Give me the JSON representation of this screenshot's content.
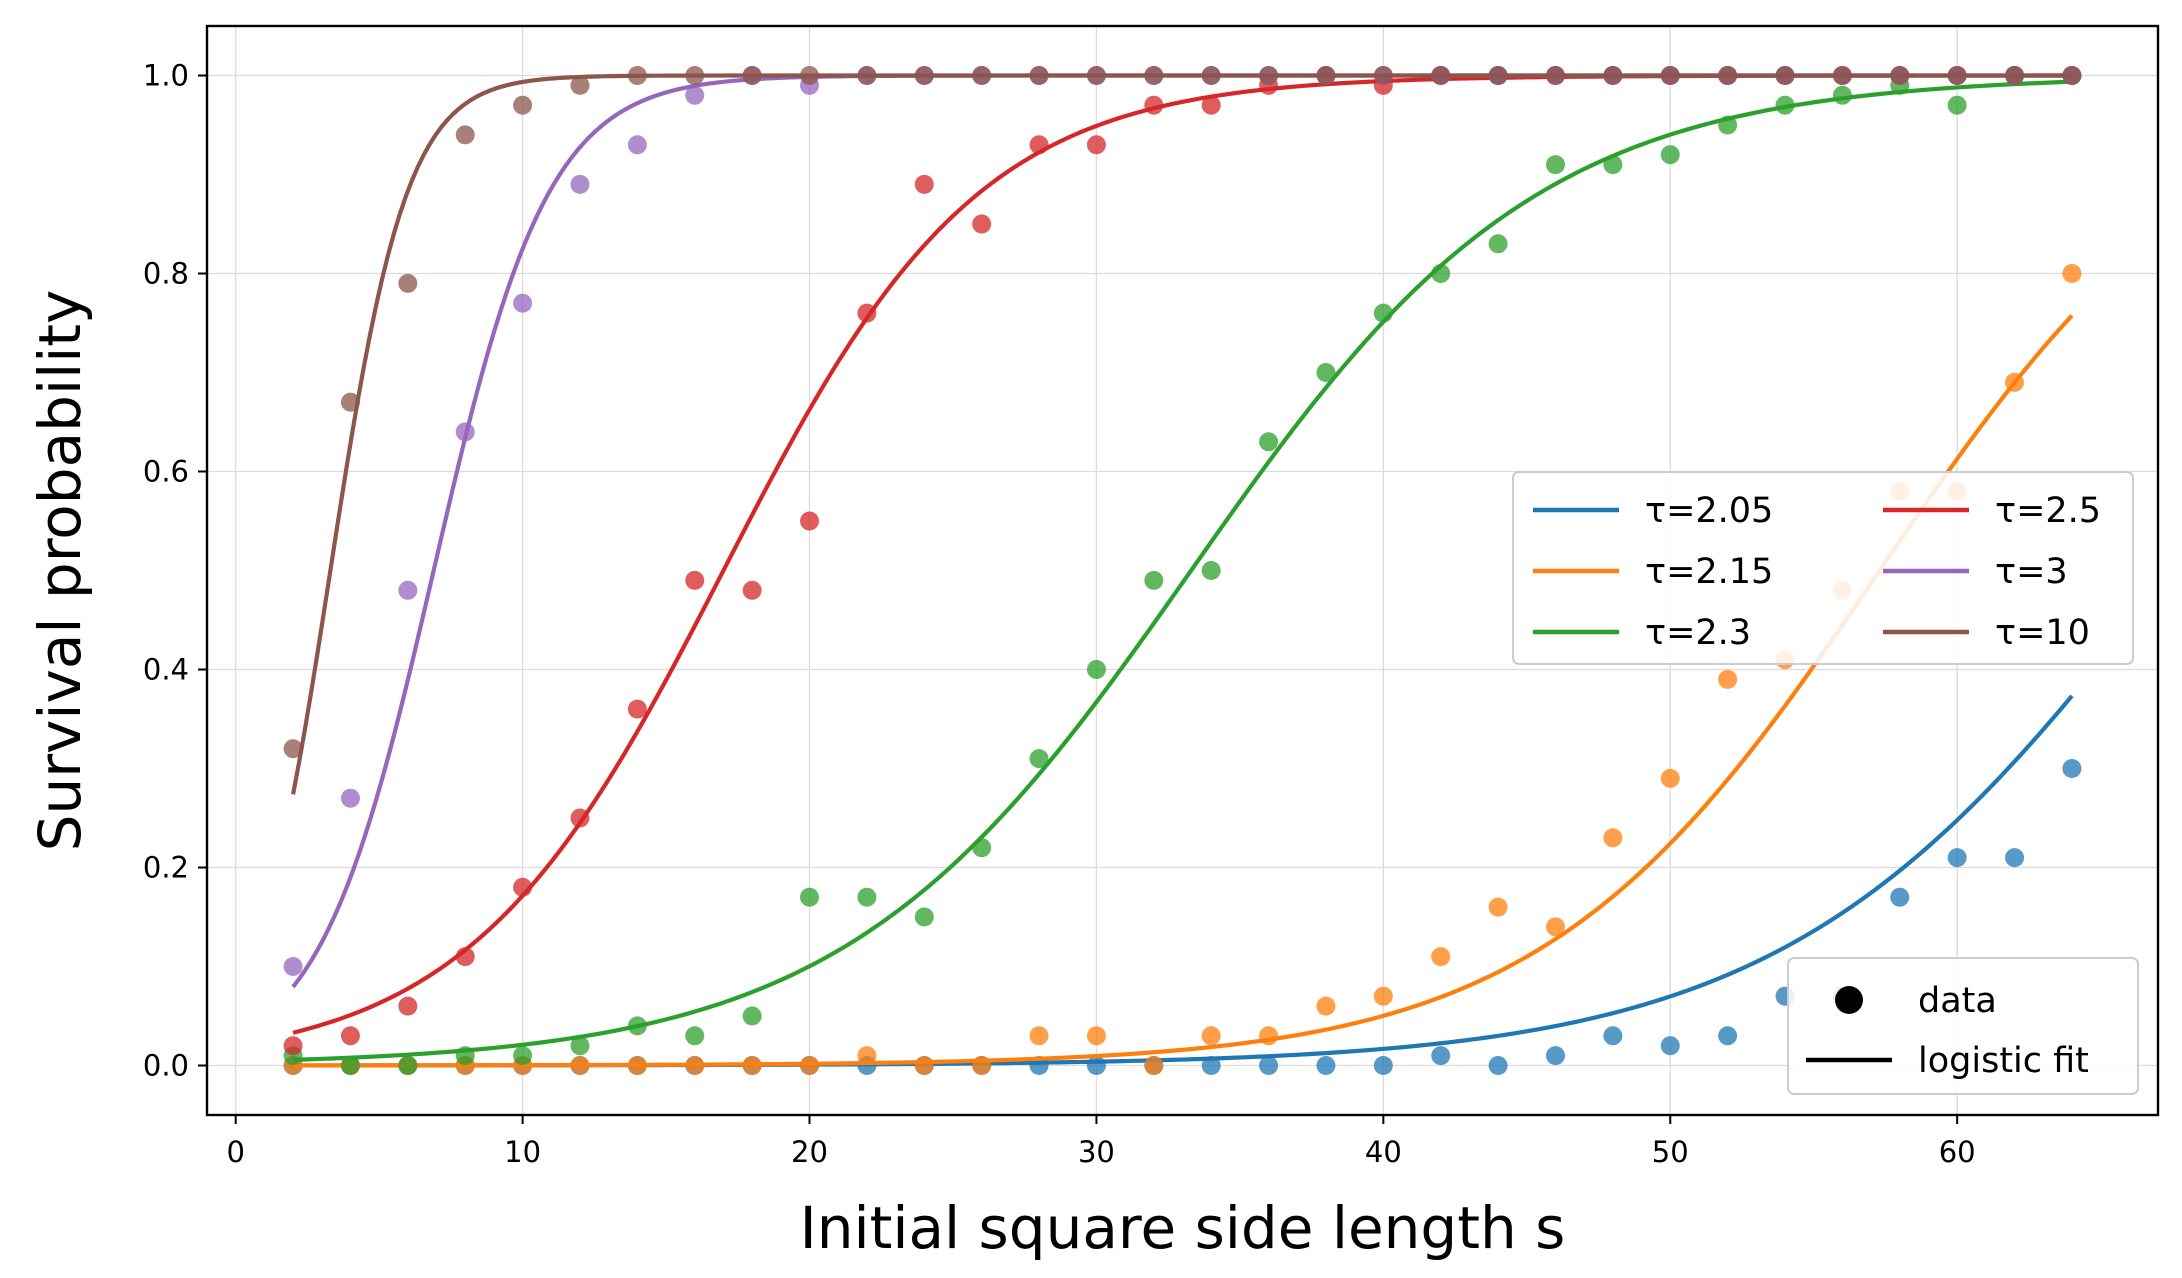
{
  "chart_data": {
    "type": "scatter",
    "xlabel": "Initial square side length s",
    "ylabel": "Survival probability",
    "xlim": [
      -1,
      67
    ],
    "ylim": [
      -0.05,
      1.05
    ],
    "xticks": [
      0,
      10,
      20,
      30,
      40,
      50,
      60
    ],
    "yticks": [
      0.0,
      0.2,
      0.4,
      0.6,
      0.8,
      1.0
    ],
    "xtick_labels": [
      "0",
      "10",
      "20",
      "30",
      "40",
      "50",
      "60"
    ],
    "ytick_labels": [
      "0.0",
      "0.2",
      "0.4",
      "0.6",
      "0.8",
      "1.0"
    ],
    "grid": true,
    "x": [
      2,
      4,
      6,
      8,
      10,
      12,
      14,
      16,
      18,
      20,
      22,
      24,
      26,
      28,
      30,
      32,
      34,
      36,
      38,
      40,
      42,
      44,
      46,
      48,
      50,
      52,
      54,
      56,
      58,
      60,
      62,
      64
    ],
    "series": [
      {
        "name": "τ=2.05",
        "color": "#1f77b4",
        "values": [
          0.0,
          0.0,
          0.0,
          0.0,
          0.0,
          0.0,
          0.0,
          0.0,
          0.0,
          0.0,
          0.0,
          0.0,
          0.0,
          0.0,
          0.0,
          0.0,
          0.0,
          0.0,
          0.0,
          0.0,
          0.01,
          0.0,
          0.01,
          0.03,
          0.02,
          0.03,
          0.07,
          0.07,
          0.17,
          0.21,
          0.21,
          0.3
        ],
        "fit": {
          "x0": 67.5,
          "k": 0.148
        }
      },
      {
        "name": "τ=2.15",
        "color": "#ff7f0e",
        "values": [
          0.0,
          0.0,
          0.0,
          0.0,
          0.0,
          0.0,
          0.0,
          0.0,
          0.0,
          0.0,
          0.01,
          0.0,
          0.0,
          0.03,
          0.03,
          0.0,
          0.03,
          0.03,
          0.06,
          0.07,
          0.11,
          0.16,
          0.14,
          0.23,
          0.29,
          0.39,
          0.41,
          0.48,
          0.58,
          0.58,
          0.69,
          0.8
        ],
        "fit": {
          "x0": 57.3,
          "k": 0.17
        }
      },
      {
        "name": "τ=2.3",
        "color": "#2ca02c",
        "values": [
          0.01,
          0.0,
          0.0,
          0.01,
          0.01,
          0.02,
          0.04,
          0.03,
          0.05,
          0.17,
          0.17,
          0.15,
          0.22,
          0.31,
          0.4,
          0.49,
          0.5,
          0.63,
          0.7,
          0.76,
          0.8,
          0.83,
          0.91,
          0.91,
          0.92,
          0.95,
          0.97,
          0.98,
          0.99,
          0.97,
          1.0,
          1.0
        ],
        "fit": {
          "x0": 33.3,
          "k": 0.165
        }
      },
      {
        "name": "τ=2.5",
        "color": "#d62728",
        "values": [
          0.02,
          0.03,
          0.06,
          0.11,
          0.18,
          0.25,
          0.36,
          0.49,
          0.48,
          0.55,
          0.76,
          0.89,
          0.85,
          0.93,
          0.93,
          0.97,
          0.97,
          0.99,
          1.0,
          0.99,
          1.0,
          1.0,
          1.0,
          1.0,
          1.0,
          1.0,
          1.0,
          1.0,
          1.0,
          1.0,
          1.0,
          1.0
        ],
        "fit": {
          "x0": 17.0,
          "k": 0.225
        }
      },
      {
        "name": "τ=3",
        "color": "#9467bd",
        "values": [
          0.1,
          0.27,
          0.48,
          0.64,
          0.77,
          0.89,
          0.93,
          0.98,
          1.0,
          0.99,
          1.0,
          1.0,
          1.0,
          1.0,
          1.0,
          1.0,
          1.0,
          1.0,
          1.0,
          1.0,
          1.0,
          1.0,
          1.0,
          1.0,
          1.0,
          1.0,
          1.0,
          1.0,
          1.0,
          1.0,
          1.0,
          1.0
        ],
        "fit": {
          "x0": 6.9,
          "k": 0.5
        }
      },
      {
        "name": "τ=10",
        "color": "#8c564b",
        "values": [
          0.32,
          0.67,
          0.79,
          0.94,
          0.97,
          0.99,
          1.0,
          1.0,
          1.0,
          1.0,
          1.0,
          1.0,
          1.0,
          1.0,
          1.0,
          1.0,
          1.0,
          1.0,
          1.0,
          1.0,
          1.0,
          1.0,
          1.0,
          1.0,
          1.0,
          1.0,
          1.0,
          1.0,
          1.0,
          1.0,
          1.0,
          1.0
        ],
        "fit": {
          "x0": 3.3,
          "k": 0.75
        }
      }
    ],
    "legend_series": {
      "position": "center-right",
      "columns": 2,
      "entries": [
        "τ=2.05",
        "τ=2.15",
        "τ=2.3",
        "τ=2.5",
        "τ=3",
        "τ=10"
      ]
    },
    "legend_style": {
      "position": "bottom-right",
      "entries": [
        {
          "label": "data",
          "marker": "dot"
        },
        {
          "label": "logistic fit",
          "marker": "line"
        }
      ]
    }
  }
}
